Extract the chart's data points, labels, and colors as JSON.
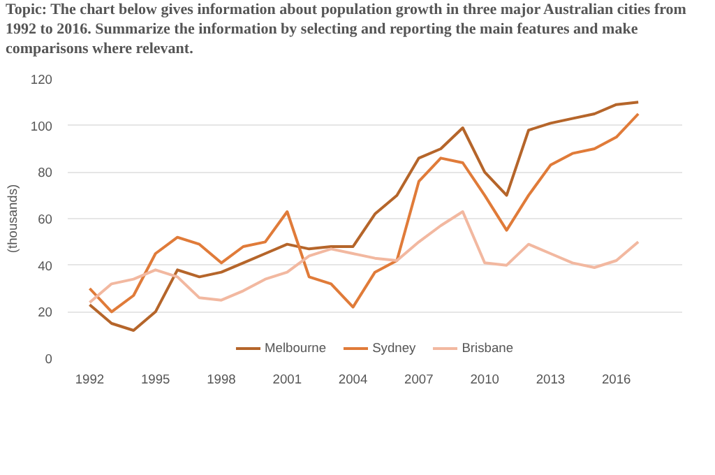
{
  "chart_data": {
    "type": "line",
    "title": "Topic: The chart below gives information about population growth in three major Australian cities from 1992 to 2016. Summarize the information by selecting and reporting the main features and make comparisons where relevant.",
    "ylabel": "(thousands)",
    "x": [
      1992,
      1993,
      1994,
      1995,
      1996,
      1997,
      1998,
      1999,
      2000,
      2001,
      2002,
      2003,
      2004,
      2005,
      2006,
      2007,
      2008,
      2009,
      2010,
      2011,
      2012,
      2013,
      2014,
      2015,
      2016,
      2017
    ],
    "series": [
      {
        "name": "Melbourne",
        "color": "#b5652a",
        "values": [
          23,
          15,
          12,
          20,
          38,
          35,
          37,
          41,
          45,
          49,
          47,
          48,
          48,
          62,
          70,
          86,
          90,
          99,
          80,
          70,
          98,
          101,
          103,
          105,
          109,
          110
        ]
      },
      {
        "name": "Sydney",
        "color": "#e07b39",
        "values": [
          30,
          20,
          27,
          45,
          52,
          49,
          41,
          48,
          50,
          63,
          35,
          32,
          22,
          37,
          42,
          76,
          86,
          84,
          70,
          55,
          70,
          83,
          88,
          90,
          95,
          105
        ]
      },
      {
        "name": "Brisbane",
        "color": "#f2b8a0",
        "values": [
          24,
          32,
          34,
          38,
          35,
          26,
          25,
          29,
          34,
          37,
          44,
          47,
          45,
          43,
          42,
          50,
          57,
          63,
          41,
          40,
          49,
          45,
          41,
          39,
          42,
          50
        ]
      }
    ],
    "xlim": [
      1991,
      2019
    ],
    "ylim": [
      0,
      120
    ],
    "xticks": [
      1992,
      1995,
      1998,
      2001,
      2004,
      2007,
      2010,
      2013,
      2016
    ],
    "yticks": [
      0,
      20,
      40,
      60,
      80,
      100,
      120
    ],
    "grid": "y",
    "legend": "bottom"
  }
}
